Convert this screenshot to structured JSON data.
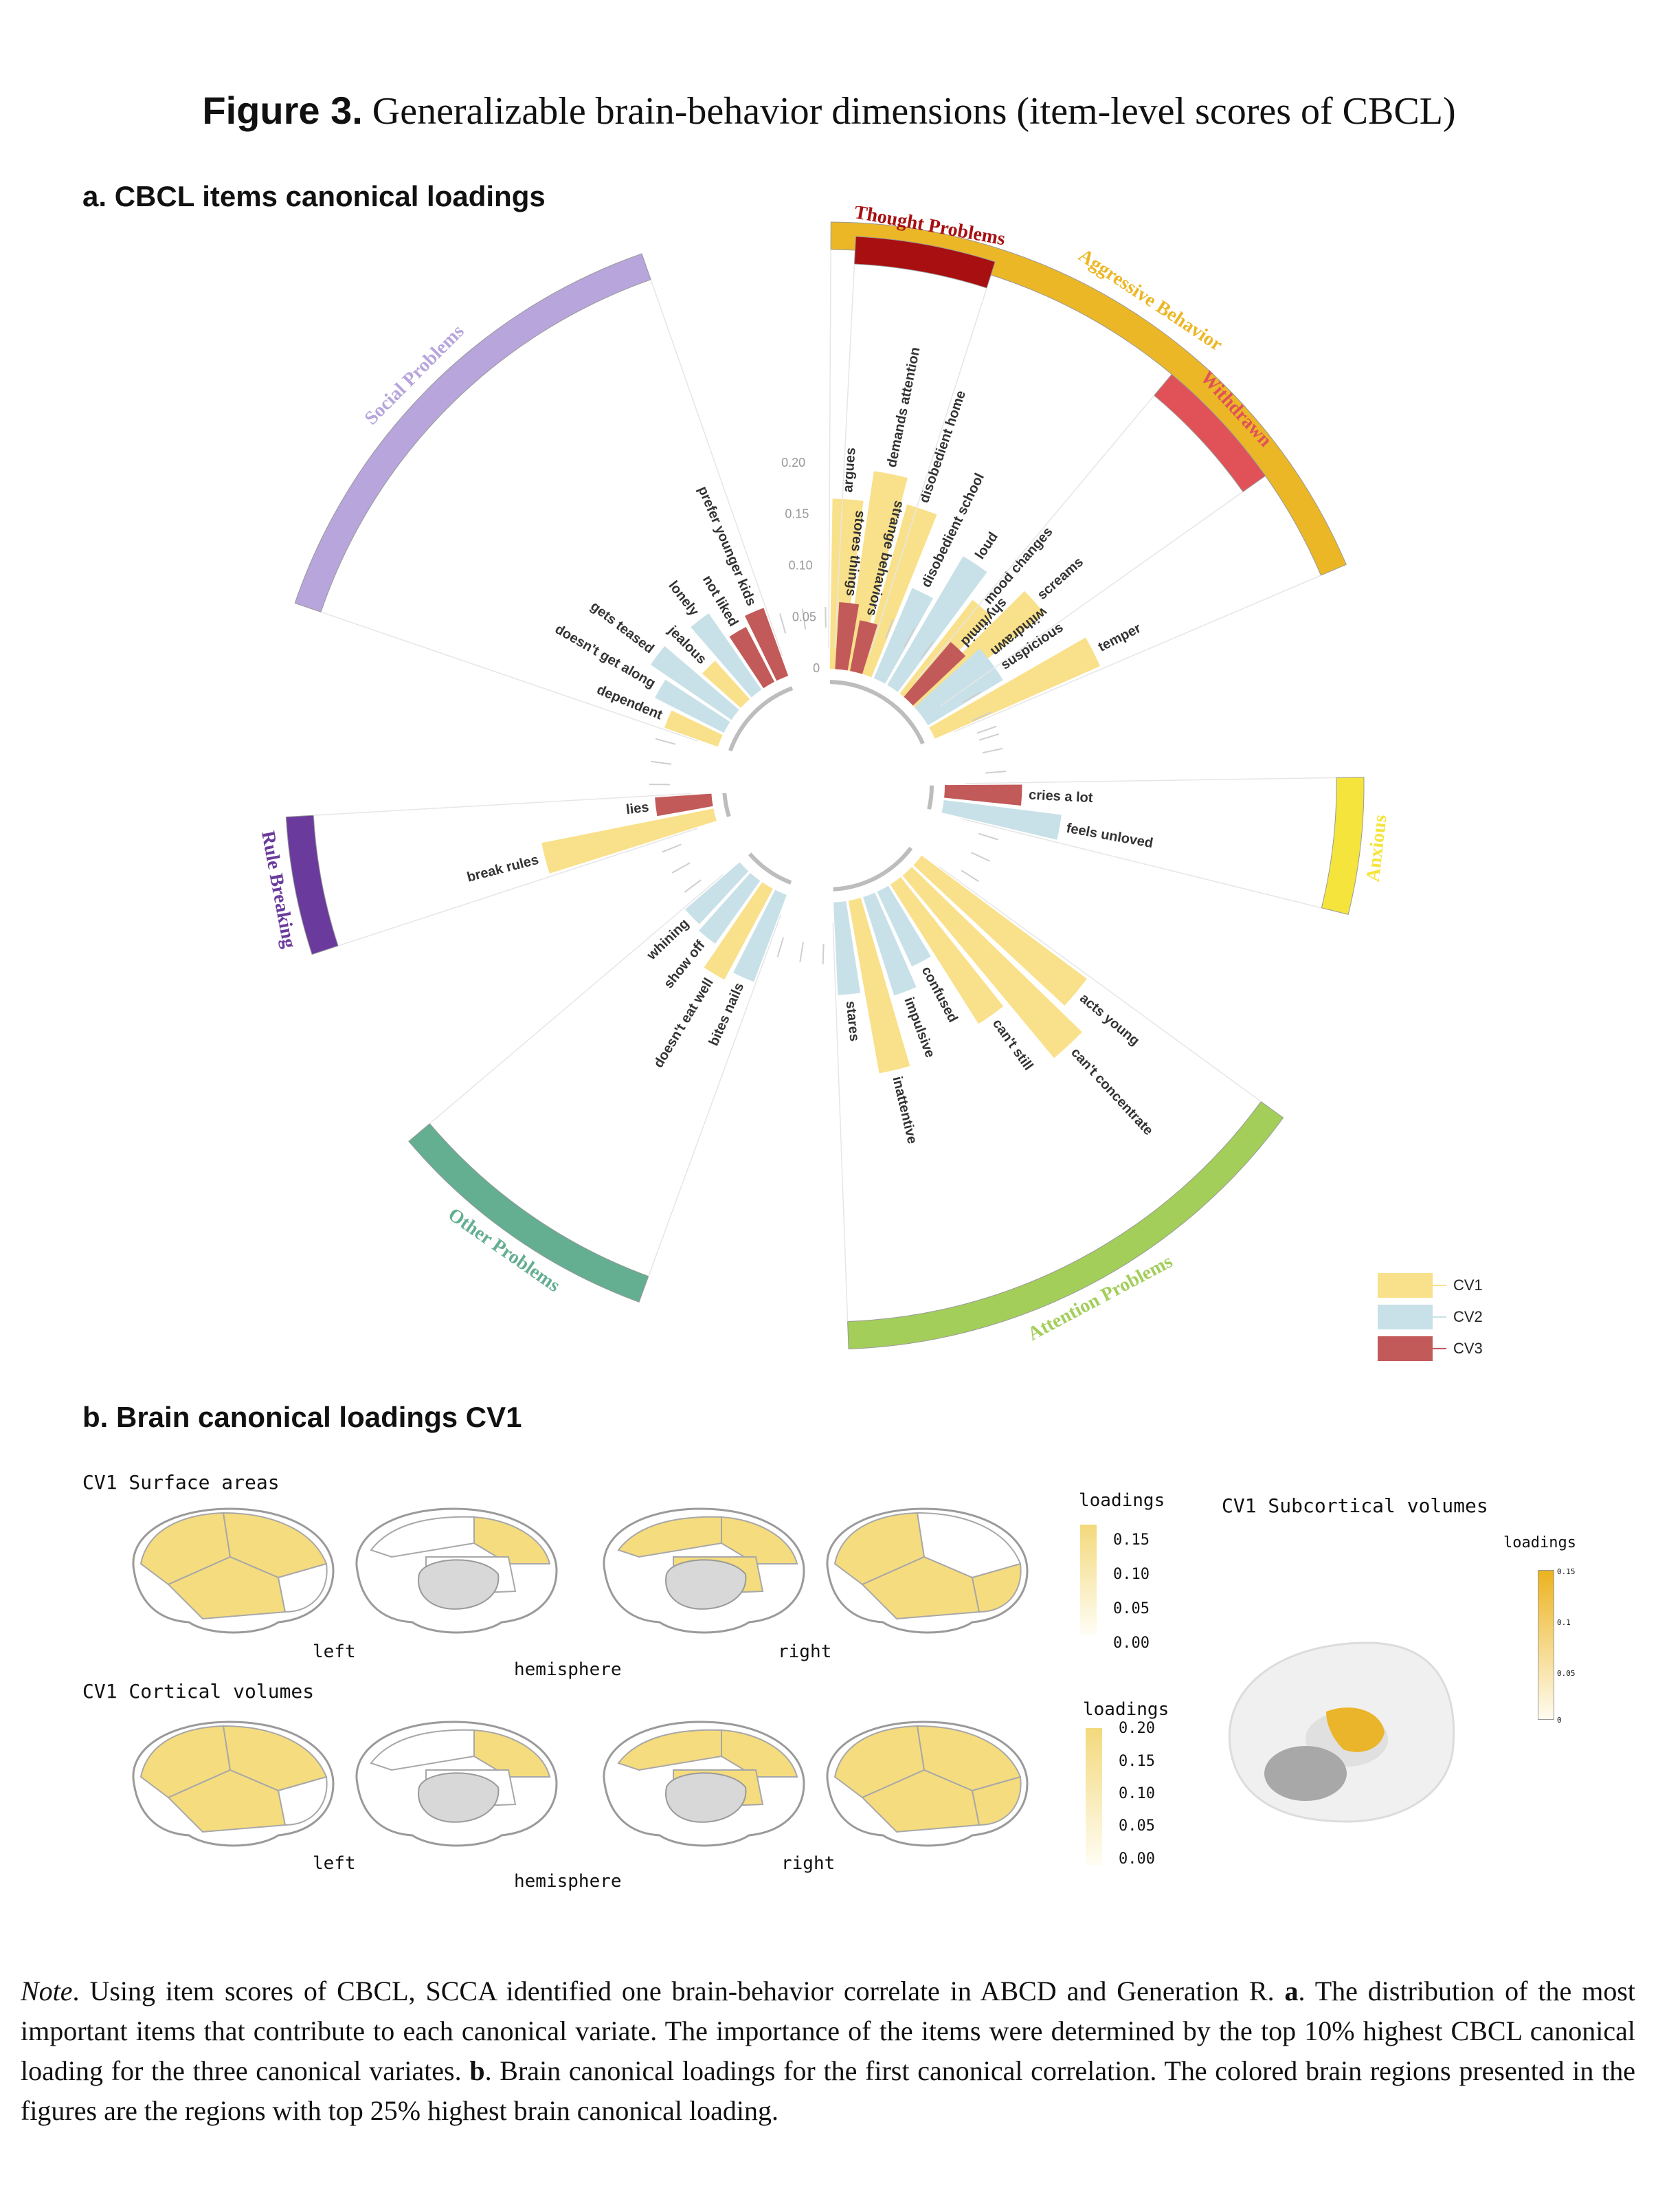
{
  "figure": {
    "number": "Figure 3.",
    "title": "Generalizable brain-behavior dimensions (item-level scores of CBCL)"
  },
  "panel_a": {
    "title": "a. CBCL items canonical loadings"
  },
  "panel_b": {
    "title": "b. Brain canonical loadings CV1",
    "surface": {
      "title": "CV1 Surface areas",
      "left": "left",
      "right": "right",
      "hemisphere": "hemisphere",
      "legend_title": "loadings",
      "ticks": [
        "0.15",
        "0.10",
        "0.05",
        "0.00"
      ]
    },
    "cortical": {
      "title": "CV1 Cortical volumes",
      "left": "left",
      "right": "right",
      "hemisphere": "hemisphere",
      "legend_title": "loadings",
      "ticks": [
        "0.20",
        "0.15",
        "0.10",
        "0.05",
        "0.00"
      ]
    },
    "subcortical": {
      "title": "CV1 Subcortical volumes",
      "legend_title": "loadings",
      "ticks": [
        "0.15",
        "0.1",
        "0.05",
        "0"
      ]
    },
    "colors": {
      "low": "#fffdf2",
      "high": "#f5dc7e",
      "sub_high": "#eab52a"
    }
  },
  "chart_data": {
    "type": "bar",
    "layout": "circular",
    "radial_ticks": [
      "0",
      "0.05",
      "0.10",
      "0.15",
      "0.20"
    ],
    "ylim": [
      0,
      0.2
    ],
    "legend": {
      "placement": "bottom-right",
      "entries": [
        "CV1",
        "CV2",
        "CV3"
      ]
    },
    "colors": {
      "CV1": "#f9e08a",
      "CV2": "#c8e1e8",
      "CV3": "#c25a5a"
    },
    "groups": [
      {
        "name": "Aggressive Behavior",
        "color": "#ecb726",
        "items": [
          {
            "label": "argues",
            "cv": "CV1",
            "value": 0.165
          },
          {
            "label": "demands attention",
            "cv": "CV1",
            "value": 0.195
          },
          {
            "label": "disobedient home",
            "cv": "CV1",
            "value": 0.17
          },
          {
            "label": "disobedient school",
            "cv": "CV2",
            "value": 0.095
          },
          {
            "label": "loud",
            "cv": "CV2",
            "value": 0.145
          },
          {
            "label": "mood changes",
            "cv": "CV1",
            "value": 0.115
          },
          {
            "label": "screams",
            "cv": "CV1",
            "value": 0.155
          },
          {
            "label": "suspicious",
            "cv": "CV2",
            "value": 0.085
          },
          {
            "label": "temper",
            "cv": "CV1",
            "value": 0.175
          }
        ]
      },
      {
        "name": "Anxious",
        "color": "#f5e43c",
        "items": [
          {
            "label": "cries a lot",
            "cv": "CV3",
            "value": 0.075
          },
          {
            "label": "feels unloved",
            "cv": "CV2",
            "value": 0.115
          }
        ]
      },
      {
        "name": "Attention Problems",
        "color": "#a3ce5a",
        "items": [
          {
            "label": "acts young",
            "cv": "CV1",
            "value": 0.2
          },
          {
            "label": "can't concentrate",
            "cv": "CV1",
            "value": 0.23
          },
          {
            "label": "can't still",
            "cv": "CV1",
            "value": 0.16
          },
          {
            "label": "confused",
            "cv": "CV2",
            "value": 0.08
          },
          {
            "label": "impulsive",
            "cv": "CV2",
            "value": 0.1
          },
          {
            "label": "inattentive",
            "cv": "CV1",
            "value": 0.17
          },
          {
            "label": "stares",
            "cv": "CV2",
            "value": 0.09
          }
        ]
      },
      {
        "name": "Other Problems",
        "color": "#64ae92",
        "items": [
          {
            "label": "bites nails",
            "cv": "CV2",
            "value": 0.09
          },
          {
            "label": "doesn't eat well",
            "cv": "CV1",
            "value": 0.1
          },
          {
            "label": "show off",
            "cv": "CV2",
            "value": 0.075
          },
          {
            "label": "whining",
            "cv": "CV2",
            "value": 0.07
          }
        ]
      },
      {
        "name": "Rule Breaking",
        "color": "#6a3b9c",
        "items": [
          {
            "label": "break rules",
            "cv": "CV1",
            "value": 0.17
          },
          {
            "label": "lies",
            "cv": "CV3",
            "value": 0.055
          }
        ]
      },
      {
        "name": "Social Problems",
        "color": "#b7a5dc",
        "items": [
          {
            "label": "dependent",
            "cv": "CV1",
            "value": 0.055
          },
          {
            "label": "doesn't get along",
            "cv": "CV2",
            "value": 0.075
          },
          {
            "label": "gets teased",
            "cv": "CV2",
            "value": 0.095
          },
          {
            "label": "jealous",
            "cv": "CV1",
            "value": 0.05
          },
          {
            "label": "lonely",
            "cv": "CV2",
            "value": 0.09
          },
          {
            "label": "not liked",
            "cv": "CV3",
            "value": 0.06
          },
          {
            "label": "prefer younger kids",
            "cv": "CV3",
            "value": 0.07
          }
        ]
      },
      {
        "name": "Thought Problems",
        "color": "#a80f10",
        "items": [
          {
            "label": "stores things",
            "cv": "CV3",
            "value": 0.065
          },
          {
            "label": "strange behaviors",
            "cv": "CV3",
            "value": 0.05
          }
        ]
      },
      {
        "name": "Withdrawn",
        "color": "#e05258",
        "items": [
          {
            "label": "shy/timid",
            "cv": "CV3",
            "value": 0.07
          },
          {
            "label": "withdrawn",
            "cv": "CV2",
            "value": 0.085
          }
        ]
      }
    ]
  },
  "note": {
    "lead": "Note",
    "text": ". Using item scores of CBCL, SCCA identified one brain-behavior correlate in ABCD and Generation R. ",
    "a": "a",
    "text_a": ". The distribution of the most important items that contribute to each canonical variate. The importance of the items were determined by the top 10% highest CBCL canonical loading for the three canonical variates. ",
    "b": "b",
    "text_b": ". Brain canonical loadings for the first canonical correlation. The colored brain regions presented in the figures are the regions with top 25% highest brain canonical loading."
  }
}
